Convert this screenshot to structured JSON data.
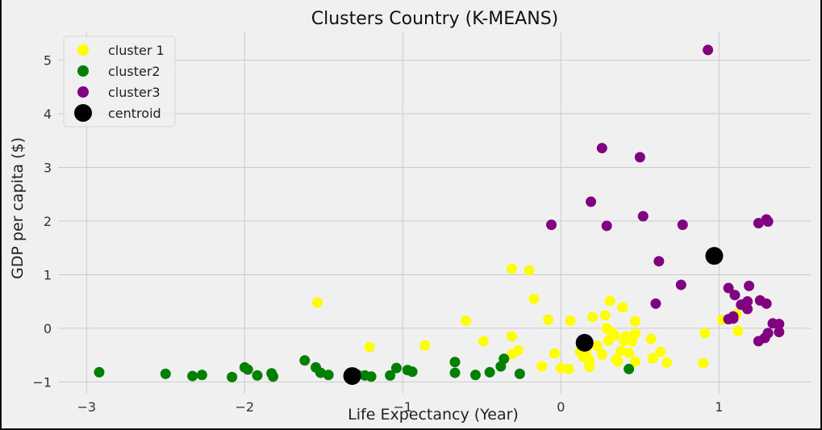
{
  "chart_data": {
    "type": "scatter",
    "title": "Clusters Country (K-MEANS)",
    "xlabel": "Life Expectancy (Year)",
    "ylabel": "GDP per capita ($)",
    "xlim": [
      -3.18,
      1.58
    ],
    "ylim": [
      -1.22,
      5.52
    ],
    "xticks": [
      -3,
      -2,
      -1,
      0,
      1
    ],
    "yticks": [
      -1,
      0,
      1,
      2,
      3,
      4,
      5
    ],
    "xtick_labels": [
      "−3",
      "−2",
      "−1",
      "0",
      "1"
    ],
    "ytick_labels": [
      "−1",
      "0",
      "1",
      "2",
      "3",
      "4",
      "5"
    ],
    "grid": true,
    "legend_position": "top-left",
    "series": [
      {
        "name": "cluster 1",
        "color": "#ffff00",
        "points": [
          [
            -1.54,
            0.48
          ],
          [
            -1.21,
            -0.35
          ],
          [
            -0.86,
            -0.32
          ],
          [
            -0.6,
            0.14
          ],
          [
            -0.49,
            -0.24
          ],
          [
            -0.31,
            1.11
          ],
          [
            -0.31,
            -0.15
          ],
          [
            -0.31,
            -0.48
          ],
          [
            -0.27,
            -0.41
          ],
          [
            -0.2,
            1.08
          ],
          [
            -0.17,
            0.55
          ],
          [
            -0.12,
            -0.71
          ],
          [
            -0.08,
            0.16
          ],
          [
            -0.04,
            -0.47
          ],
          [
            0.0,
            -0.74
          ],
          [
            0.05,
            -0.76
          ],
          [
            0.06,
            0.14
          ],
          [
            0.12,
            -0.43
          ],
          [
            0.14,
            -0.53
          ],
          [
            0.16,
            -0.46
          ],
          [
            0.18,
            -0.72
          ],
          [
            0.18,
            -0.6
          ],
          [
            0.2,
            0.21
          ],
          [
            0.23,
            -0.33
          ],
          [
            0.26,
            -0.49
          ],
          [
            0.28,
            0.24
          ],
          [
            0.29,
            -0.0
          ],
          [
            0.3,
            -0.23
          ],
          [
            0.31,
            0.51
          ],
          [
            0.32,
            -0.07
          ],
          [
            0.34,
            -0.13
          ],
          [
            0.35,
            -0.58
          ],
          [
            0.36,
            -0.62
          ],
          [
            0.38,
            -0.42
          ],
          [
            0.39,
            0.39
          ],
          [
            0.4,
            -0.23
          ],
          [
            0.41,
            -0.15
          ],
          [
            0.43,
            -0.46
          ],
          [
            0.45,
            -0.24
          ],
          [
            0.47,
            -0.1
          ],
          [
            0.47,
            0.13
          ],
          [
            0.47,
            -0.62
          ],
          [
            0.57,
            -0.2
          ],
          [
            0.58,
            -0.56
          ],
          [
            0.63,
            -0.44
          ],
          [
            0.67,
            -0.64
          ],
          [
            0.9,
            -0.65
          ],
          [
            0.91,
            -0.09
          ],
          [
            1.02,
            0.16
          ],
          [
            1.11,
            0.26
          ],
          [
            1.12,
            -0.05
          ]
        ]
      },
      {
        "name": "cluster2",
        "color": "#008000",
        "points": [
          [
            -2.92,
            -0.82
          ],
          [
            -2.5,
            -0.85
          ],
          [
            -2.33,
            -0.89
          ],
          [
            -2.27,
            -0.87
          ],
          [
            -2.08,
            -0.91
          ],
          [
            -2.0,
            -0.73
          ],
          [
            -1.98,
            -0.77
          ],
          [
            -1.92,
            -0.88
          ],
          [
            -1.83,
            -0.84
          ],
          [
            -1.82,
            -0.9
          ],
          [
            -1.62,
            -0.6
          ],
          [
            -1.55,
            -0.73
          ],
          [
            -1.52,
            -0.83
          ],
          [
            -1.47,
            -0.87
          ],
          [
            -1.34,
            -0.88
          ],
          [
            -1.29,
            -0.86
          ],
          [
            -1.24,
            -0.88
          ],
          [
            -1.2,
            -0.9
          ],
          [
            -1.08,
            -0.88
          ],
          [
            -1.04,
            -0.74
          ],
          [
            -0.97,
            -0.78
          ],
          [
            -0.94,
            -0.81
          ],
          [
            -0.67,
            -0.63
          ],
          [
            -0.67,
            -0.83
          ],
          [
            -0.54,
            -0.87
          ],
          [
            -0.45,
            -0.82
          ],
          [
            -0.38,
            -0.71
          ],
          [
            -0.36,
            -0.57
          ],
          [
            -0.26,
            -0.85
          ],
          [
            0.43,
            -0.76
          ]
        ]
      },
      {
        "name": "cluster3",
        "color": "#800080",
        "points": [
          [
            0.93,
            5.19
          ],
          [
            0.26,
            3.36
          ],
          [
            0.5,
            3.19
          ],
          [
            0.19,
            2.36
          ],
          [
            -0.06,
            1.93
          ],
          [
            0.29,
            1.91
          ],
          [
            0.52,
            2.09
          ],
          [
            0.77,
            1.93
          ],
          [
            0.62,
            1.25
          ],
          [
            0.76,
            0.81
          ],
          [
            0.6,
            0.46
          ],
          [
            1.25,
            1.96
          ],
          [
            1.3,
            2.03
          ],
          [
            1.31,
            1.99
          ],
          [
            1.06,
            0.75
          ],
          [
            1.1,
            0.62
          ],
          [
            1.14,
            0.44
          ],
          [
            1.18,
            0.5
          ],
          [
            1.19,
            0.79
          ],
          [
            1.18,
            0.36
          ],
          [
            1.26,
            0.52
          ],
          [
            1.3,
            0.46
          ],
          [
            1.06,
            0.17
          ],
          [
            1.09,
            0.22
          ],
          [
            1.09,
            0.18
          ],
          [
            1.34,
            0.09
          ],
          [
            1.38,
            0.08
          ],
          [
            1.31,
            -0.09
          ],
          [
            1.29,
            -0.18
          ],
          [
            1.25,
            -0.24
          ],
          [
            1.38,
            -0.07
          ]
        ]
      },
      {
        "name": "centroid",
        "color": "#000000",
        "points": [
          [
            -1.32,
            -0.89
          ],
          [
            0.15,
            -0.27
          ],
          [
            0.97,
            1.35
          ]
        ]
      }
    ]
  }
}
